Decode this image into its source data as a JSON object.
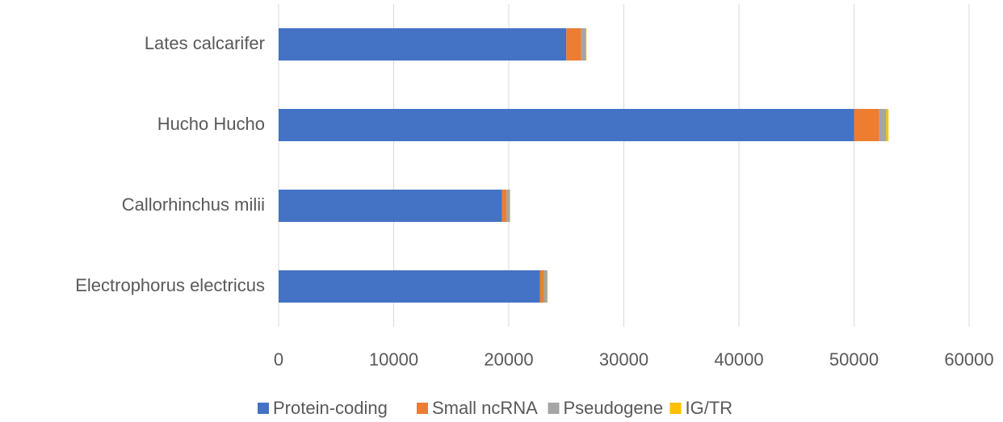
{
  "chart_data": {
    "type": "stacked-bar-horizontal",
    "categories": [
      "Electrophorus electricus",
      "Callorhinchus milii",
      "Hucho Hucho",
      "Lates calcarifer"
    ],
    "series": [
      {
        "name": "Protein-coding",
        "color": "#4472c4",
        "values": [
          22700,
          19400,
          50000,
          25000
        ]
      },
      {
        "name": "Small ncRNA",
        "color": "#ed7d31",
        "values": [
          350,
          400,
          2200,
          1300
        ]
      },
      {
        "name": "Pseudogene",
        "color": "#a5a5a5",
        "values": [
          300,
          300,
          600,
          400
        ]
      },
      {
        "name": "IG/TR",
        "color": "#ffc000",
        "values": [
          30,
          20,
          200,
          50
        ]
      }
    ],
    "xlim": [
      0,
      60000
    ],
    "xticks": [
      0,
      10000,
      20000,
      30000,
      40000,
      50000,
      60000
    ],
    "grid": true,
    "legend": "bottom"
  }
}
